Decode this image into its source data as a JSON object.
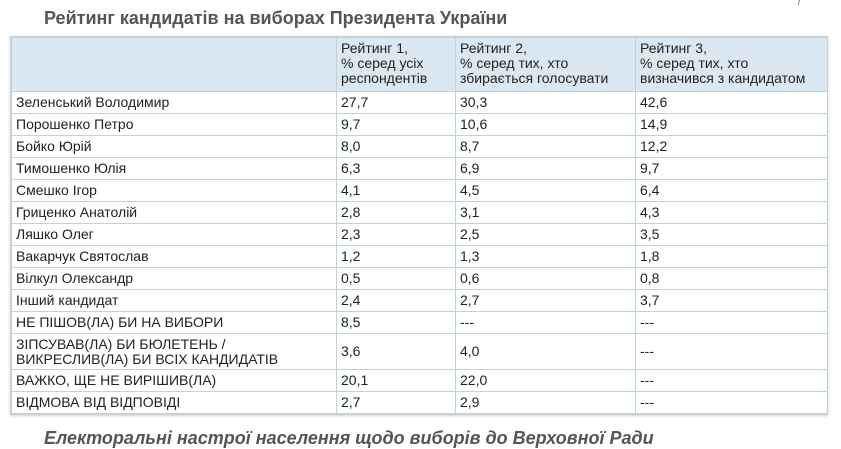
{
  "page": {
    "title": "Рейтинг кандидатів на виборах Президента України",
    "corner_mark": "/",
    "footer_title": "Електоральні настрої населення щодо виборів до Верховної Ради"
  },
  "table": {
    "headers": [
      "",
      "Рейтинг 1,\n% серед усіх\nреспондентів",
      "Рейтинг 2,\n% серед тих, хто\nзбирається голосувати",
      "Рейтинг 3,\n% серед тих, хто\nвизначився з кандидатом"
    ],
    "rows": [
      {
        "name": "Зеленський Володимир",
        "r1": "27,7",
        "r2": "30,3",
        "r3": "42,6"
      },
      {
        "name": "Порошенко Петро",
        "r1": "9,7",
        "r2": "10,6",
        "r3": "14,9"
      },
      {
        "name": "Бойко Юрій",
        "r1": "8,0",
        "r2": "8,7",
        "r3": "12,2"
      },
      {
        "name": "Тимошенко Юлія",
        "r1": "6,3",
        "r2": "6,9",
        "r3": "9,7"
      },
      {
        "name": "Смешко Ігор",
        "r1": "4,1",
        "r2": "4,5",
        "r3": "6,4"
      },
      {
        "name": "Гриценко Анатолій",
        "r1": "2,8",
        "r2": "3,1",
        "r3": "4,3"
      },
      {
        "name": "Ляшко Олег",
        "r1": "2,3",
        "r2": "2,5",
        "r3": "3,5"
      },
      {
        "name": "Вакарчук Святослав",
        "r1": "1,2",
        "r2": "1,3",
        "r3": "1,8"
      },
      {
        "name": "Вілкул Олександр",
        "r1": "0,5",
        "r2": "0,6",
        "r3": "0,8"
      },
      {
        "name": "Інший кандидат",
        "r1": "2,4",
        "r2": "2,7",
        "r3": "3,7"
      },
      {
        "name": "НЕ ПІШОВ(ЛА) БИ НА ВИБОРИ",
        "r1": "8,5",
        "r2": "---",
        "r3": "---"
      },
      {
        "name": "ЗІПСУВАВ(ЛА) БИ БЮЛЕТЕНЬ /\nВИКРЕСЛИВ(ЛА) БИ ВСІХ КАНДИДАТІВ",
        "r1": "3,6",
        "r2": "4,0",
        "r3": "---",
        "tall": true
      },
      {
        "name": "ВАЖКО, ЩЕ НЕ ВИРІШИВ(ЛА)",
        "r1": "20,1",
        "r2": "22,0",
        "r3": "---"
      },
      {
        "name": "ВІДМОВА ВІД ВІДПОВІДІ",
        "r1": "2,7",
        "r2": "2,9",
        "r3": "---"
      }
    ]
  }
}
